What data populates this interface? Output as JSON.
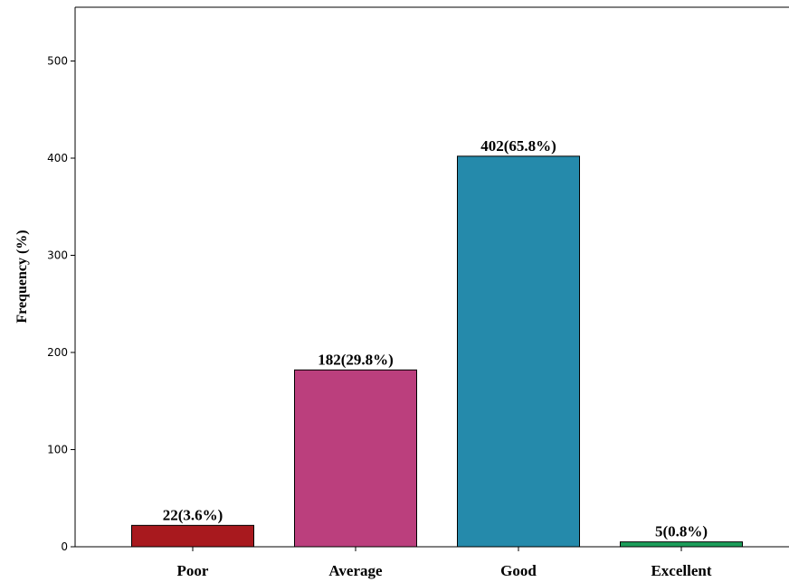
{
  "chart_data": {
    "type": "bar",
    "title": "",
    "xlabel": "",
    "ylabel": "Frequency (%)",
    "ylim": [
      0,
      500
    ],
    "yticks": [
      0,
      100,
      200,
      300,
      400,
      500
    ],
    "ytick_labels": [
      "0",
      "100",
      "200",
      "300",
      "400",
      "500"
    ],
    "grid": false,
    "categories": [
      "Poor",
      "Average",
      "Good",
      "Excellent"
    ],
    "values": [
      22,
      182,
      402,
      5
    ],
    "data_labels": [
      "22(3.6%)",
      "182(29.8%)",
      "402(65.8%)",
      "5(0.8%)"
    ],
    "colors": [
      "#a8191e",
      "#bb3f7d",
      "#258aab",
      "#1c9e5a"
    ]
  }
}
